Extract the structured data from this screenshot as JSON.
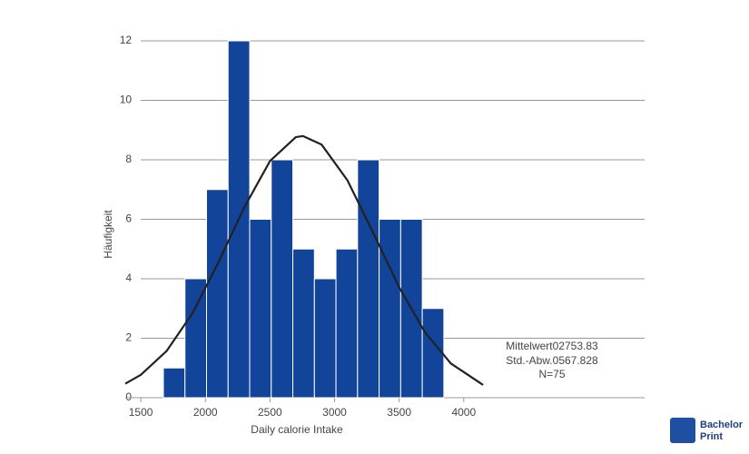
{
  "chart_data": {
    "type": "histogram",
    "bins": [
      1675,
      1842,
      2009,
      2176,
      2343,
      2510,
      2677,
      2844,
      3011,
      3178,
      3345,
      3512,
      3679,
      3846
    ],
    "values": [
      1,
      4,
      7,
      12,
      6,
      8,
      5,
      4,
      5,
      8,
      6,
      6,
      3
    ],
    "color": "#12449a",
    "curve": {
      "color": "#222222",
      "x": [
        1380,
        1500,
        1700,
        1900,
        2100,
        2300,
        2500,
        2700,
        2754,
        2900,
        3100,
        3300,
        3500,
        3700,
        3900,
        4150
      ],
      "values": [
        0.47,
        0.77,
        1.57,
        2.84,
        4.54,
        6.39,
        7.96,
        8.76,
        8.8,
        8.51,
        7.31,
        5.54,
        3.71,
        2.2,
        1.15,
        0.43
      ]
    },
    "xlabel": "Daily calorie Intake",
    "ylabel": "Häufigkeit",
    "xlim": [
      1380,
      5400
    ],
    "xticks": [
      1500,
      2000,
      2500,
      3000,
      3500,
      4000
    ],
    "ylim": [
      0,
      12
    ],
    "yticks": [
      0,
      2,
      4,
      6,
      8,
      10,
      12
    ],
    "grid": true,
    "annotations": [
      "Mittelwert02753.83",
      "Std.-Abw.0567.828",
      "N=75"
    ],
    "watermark": [
      "Bachelor",
      "Print"
    ]
  }
}
